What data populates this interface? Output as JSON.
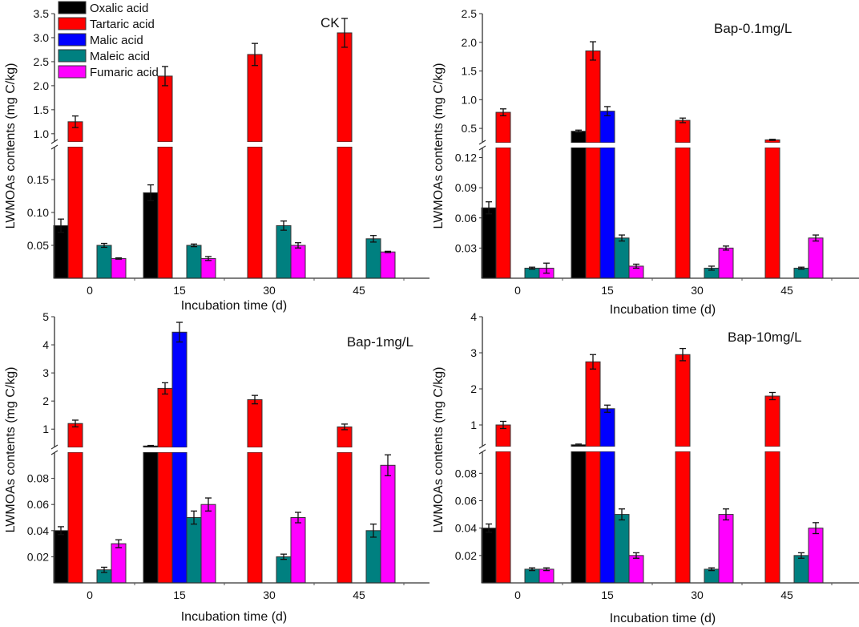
{
  "chart_data": {
    "type": "bar",
    "layout": "2x2 grouped bar charts with broken y-axis",
    "legend": {
      "placement": "top-left of first panel",
      "entries": [
        "Oxalic acid",
        "Tartaric acid",
        "Malic acid",
        "Maleic acid",
        "Fumaric acid"
      ],
      "colors": [
        "#000000",
        "#ff0000",
        "#0000ff",
        "#008080",
        "#ff00ff"
      ]
    },
    "xlabel": "Incubation time (d)",
    "ylabel": "LWMOAs contents (mg C/kg)",
    "categories": [
      "0",
      "15",
      "30",
      "45"
    ],
    "panels": [
      {
        "title": "CK",
        "upper_range": [
          0.83,
          3.5
        ],
        "lower_range": [
          0,
          0.2
        ],
        "upper_ticks": [
          {
            "v": 1.0,
            "label": "1.0"
          },
          {
            "v": 1.5,
            "label": "1.5"
          },
          {
            "v": 2.0,
            "label": "2.0"
          },
          {
            "v": 2.5,
            "label": "2.5"
          },
          {
            "v": 3.0,
            "label": "3.0"
          },
          {
            "v": 3.5,
            "label": "3.5"
          }
        ],
        "lower_ticks": [
          {
            "v": 0.05,
            "label": "0.05"
          },
          {
            "v": 0.1,
            "label": "0.10"
          },
          {
            "v": 0.15,
            "label": "0.15"
          }
        ],
        "series": [
          {
            "name": "Oxalic acid",
            "values": [
              0.08,
              0.13,
              0,
              0
            ],
            "errors": [
              0.01,
              0.012,
              0,
              0
            ]
          },
          {
            "name": "Tartaric acid",
            "values": [
              1.25,
              2.2,
              2.65,
              3.1
            ],
            "errors": [
              0.12,
              0.2,
              0.23,
              0.3
            ]
          },
          {
            "name": "Malic acid",
            "values": [
              0,
              0,
              0,
              0
            ],
            "errors": [
              0,
              0,
              0,
              0
            ]
          },
          {
            "name": "Maleic acid",
            "values": [
              0.05,
              0.05,
              0.08,
              0.06
            ],
            "errors": [
              0.003,
              0.002,
              0.007,
              0.005
            ]
          },
          {
            "name": "Fumaric acid",
            "values": [
              0.03,
              0.03,
              0.05,
              0.04
            ],
            "errors": [
              0.001,
              0.003,
              0.004,
              0.001
            ]
          }
        ]
      },
      {
        "title": "Bap-0.1mg/L",
        "upper_range": [
          0.25,
          2.5
        ],
        "lower_range": [
          0,
          0.13
        ],
        "upper_ticks": [
          {
            "v": 0.5,
            "label": "0.5"
          },
          {
            "v": 1.0,
            "label": "1.0"
          },
          {
            "v": 1.5,
            "label": "1.5"
          },
          {
            "v": 2.0,
            "label": "2.0"
          },
          {
            "v": 2.5,
            "label": "2.5"
          }
        ],
        "lower_ticks": [
          {
            "v": 0.03,
            "label": "0.03"
          },
          {
            "v": 0.06,
            "label": "0.06"
          },
          {
            "v": 0.09,
            "label": "0.09"
          },
          {
            "v": 0.12,
            "label": "0.12"
          }
        ],
        "series": [
          {
            "name": "Oxalic acid",
            "values": [
              0.07,
              0.45,
              0,
              0
            ],
            "errors": [
              0.006,
              0.02,
              0,
              0
            ]
          },
          {
            "name": "Tartaric acid",
            "values": [
              0.78,
              1.85,
              0.64,
              0.3
            ],
            "errors": [
              0.06,
              0.16,
              0.04,
              0.01
            ]
          },
          {
            "name": "Malic acid",
            "values": [
              0,
              0.8,
              0,
              0
            ],
            "errors": [
              0,
              0.08,
              0,
              0
            ]
          },
          {
            "name": "Maleic acid",
            "values": [
              0.01,
              0.04,
              0.01,
              0.01
            ],
            "errors": [
              0.001,
              0.003,
              0.002,
              0.001
            ]
          },
          {
            "name": "Fumaric acid",
            "values": [
              0.01,
              0.012,
              0.03,
              0.04
            ],
            "errors": [
              0.005,
              0.002,
              0.002,
              0.003
            ]
          }
        ]
      },
      {
        "title": "Bap-1mg/L",
        "upper_range": [
          0.35,
          5
        ],
        "lower_range": [
          0,
          0.1
        ],
        "upper_ticks": [
          {
            "v": 1,
            "label": "1"
          },
          {
            "v": 2,
            "label": "2"
          },
          {
            "v": 3,
            "label": "3"
          },
          {
            "v": 4,
            "label": "4"
          },
          {
            "v": 5,
            "label": "5"
          }
        ],
        "lower_ticks": [
          {
            "v": 0.02,
            "label": "0.02"
          },
          {
            "v": 0.04,
            "label": "0.04"
          },
          {
            "v": 0.06,
            "label": "0.06"
          },
          {
            "v": 0.08,
            "label": "0.08"
          }
        ],
        "series": [
          {
            "name": "Oxalic acid",
            "values": [
              0.04,
              0.4,
              0,
              0
            ],
            "errors": [
              0.003,
              0.02,
              0,
              0
            ]
          },
          {
            "name": "Tartaric acid",
            "values": [
              1.2,
              2.45,
              2.05,
              1.08
            ],
            "errors": [
              0.12,
              0.2,
              0.15,
              0.1
            ]
          },
          {
            "name": "Malic acid",
            "values": [
              0,
              4.45,
              0,
              0
            ],
            "errors": [
              0,
              0.35,
              0,
              0
            ]
          },
          {
            "name": "Maleic acid",
            "values": [
              0.01,
              0.05,
              0.02,
              0.04
            ],
            "errors": [
              0.002,
              0.005,
              0.002,
              0.005
            ]
          },
          {
            "name": "Fumaric acid",
            "values": [
              0.03,
              0.06,
              0.05,
              0.09
            ],
            "errors": [
              0.003,
              0.005,
              0.004,
              0.008
            ]
          }
        ]
      },
      {
        "title": "Bap-10mg/L",
        "upper_range": [
          0.4,
          4
        ],
        "lower_range": [
          0,
          0.096
        ],
        "upper_ticks": [
          {
            "v": 1,
            "label": "1"
          },
          {
            "v": 2,
            "label": "2"
          },
          {
            "v": 3,
            "label": "3"
          },
          {
            "v": 4,
            "label": "4"
          }
        ],
        "lower_ticks": [
          {
            "v": 0.02,
            "label": "0.02"
          },
          {
            "v": 0.04,
            "label": "0.04"
          },
          {
            "v": 0.06,
            "label": "0.06"
          },
          {
            "v": 0.08,
            "label": "0.08"
          }
        ],
        "series": [
          {
            "name": "Oxalic acid",
            "values": [
              0.04,
              0.45,
              0,
              0
            ],
            "errors": [
              0.003,
              0.02,
              0,
              0
            ]
          },
          {
            "name": "Tartaric acid",
            "values": [
              1.0,
              2.75,
              2.95,
              1.8
            ],
            "errors": [
              0.1,
              0.2,
              0.17,
              0.1
            ]
          },
          {
            "name": "Malic acid",
            "values": [
              0,
              1.45,
              0,
              0
            ],
            "errors": [
              0,
              0.1,
              0,
              0
            ]
          },
          {
            "name": "Maleic acid",
            "values": [
              0.01,
              0.05,
              0.01,
              0.02
            ],
            "errors": [
              0.001,
              0.004,
              0.001,
              0.002
            ]
          },
          {
            "name": "Fumaric acid",
            "values": [
              0.01,
              0.02,
              0.05,
              0.04
            ],
            "errors": [
              0.001,
              0.002,
              0.004,
              0.004
            ]
          }
        ]
      }
    ]
  }
}
